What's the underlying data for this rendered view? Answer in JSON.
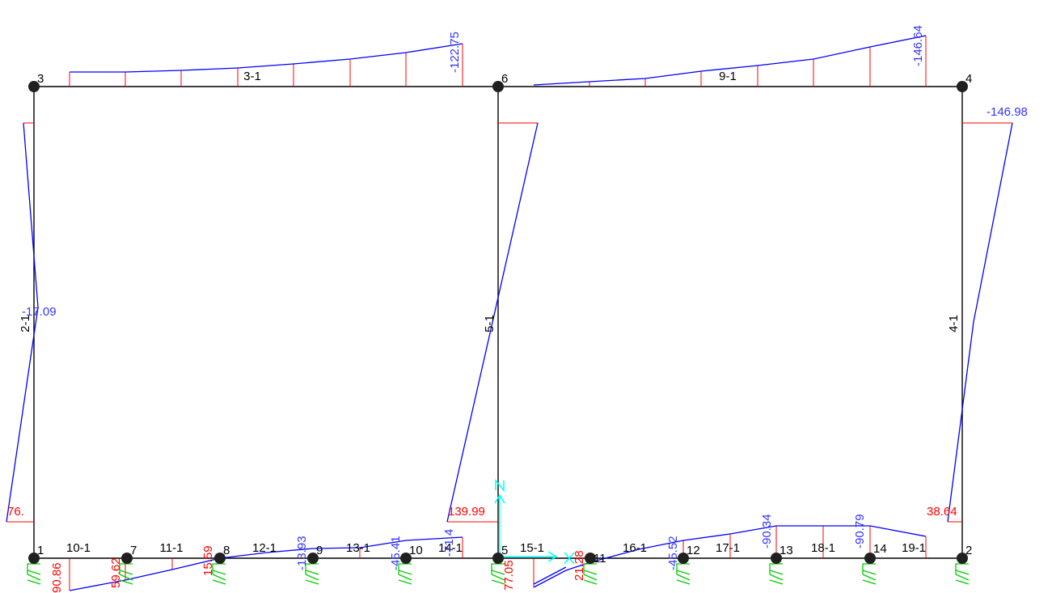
{
  "colors": {
    "frame": "#000000",
    "diagram_outline": "#0000ff",
    "ordinate": "#ff0000",
    "negative_label": "#3333ff",
    "positive_label": "#ff0000",
    "support": "#00cc00",
    "axis": "#00ffff"
  },
  "joints": [
    {
      "id": "j1",
      "label": "1"
    },
    {
      "id": "j2",
      "label": "2"
    },
    {
      "id": "j3",
      "label": "3"
    },
    {
      "id": "j4",
      "label": "4"
    },
    {
      "id": "j5",
      "label": "5"
    },
    {
      "id": "j6",
      "label": "6"
    },
    {
      "id": "j7",
      "label": "7"
    },
    {
      "id": "j8",
      "label": "8"
    },
    {
      "id": "j9",
      "label": "9"
    },
    {
      "id": "j10",
      "label": "10"
    },
    {
      "id": "j11",
      "label": "11"
    },
    {
      "id": "j12",
      "label": "12"
    },
    {
      "id": "j13",
      "label": "13"
    },
    {
      "id": "j14",
      "label": "14"
    }
  ],
  "frames": [
    {
      "id": "f2",
      "label": "2-1"
    },
    {
      "id": "f3",
      "label": "3-1"
    },
    {
      "id": "f4",
      "label": "4-1"
    },
    {
      "id": "f5",
      "label": "5-1"
    },
    {
      "id": "f9",
      "label": "9-1"
    },
    {
      "id": "f10",
      "label": "10-1"
    },
    {
      "id": "f11",
      "label": "11-1"
    },
    {
      "id": "f12",
      "label": "12-1"
    },
    {
      "id": "f13",
      "label": "13-1"
    },
    {
      "id": "f14",
      "label": "14-1"
    },
    {
      "id": "f15",
      "label": "15-1"
    },
    {
      "id": "f16",
      "label": "16-1"
    },
    {
      "id": "f17",
      "label": "17-1"
    },
    {
      "id": "f18",
      "label": "18-1"
    },
    {
      "id": "f19",
      "label": "19-1"
    }
  ],
  "values": [
    {
      "id": "v1",
      "text": "-122.75"
    },
    {
      "id": "v2",
      "text": "-146.64"
    },
    {
      "id": "v3",
      "text": "-146.98"
    },
    {
      "id": "v4",
      "text": "-17.09"
    },
    {
      "id": "v5",
      "text": "76."
    },
    {
      "id": "v6",
      "text": "139.99"
    },
    {
      "id": "v7",
      "text": "38.64"
    },
    {
      "id": "v8",
      "text": "90.86"
    },
    {
      "id": "v9",
      "text": "59.62"
    },
    {
      "id": "v10",
      "text": "15.59"
    },
    {
      "id": "v11",
      "text": "-13.93"
    },
    {
      "id": "v12",
      "text": "-45.41"
    },
    {
      "id": "v13",
      "text": "-71.4"
    },
    {
      "id": "v14",
      "text": "77.05"
    },
    {
      "id": "v15",
      "text": "21.28"
    },
    {
      "id": "v16",
      "text": "-45.52"
    },
    {
      "id": "v17",
      "text": "-90.34"
    },
    {
      "id": "v18",
      "text": "-90.79"
    }
  ]
}
